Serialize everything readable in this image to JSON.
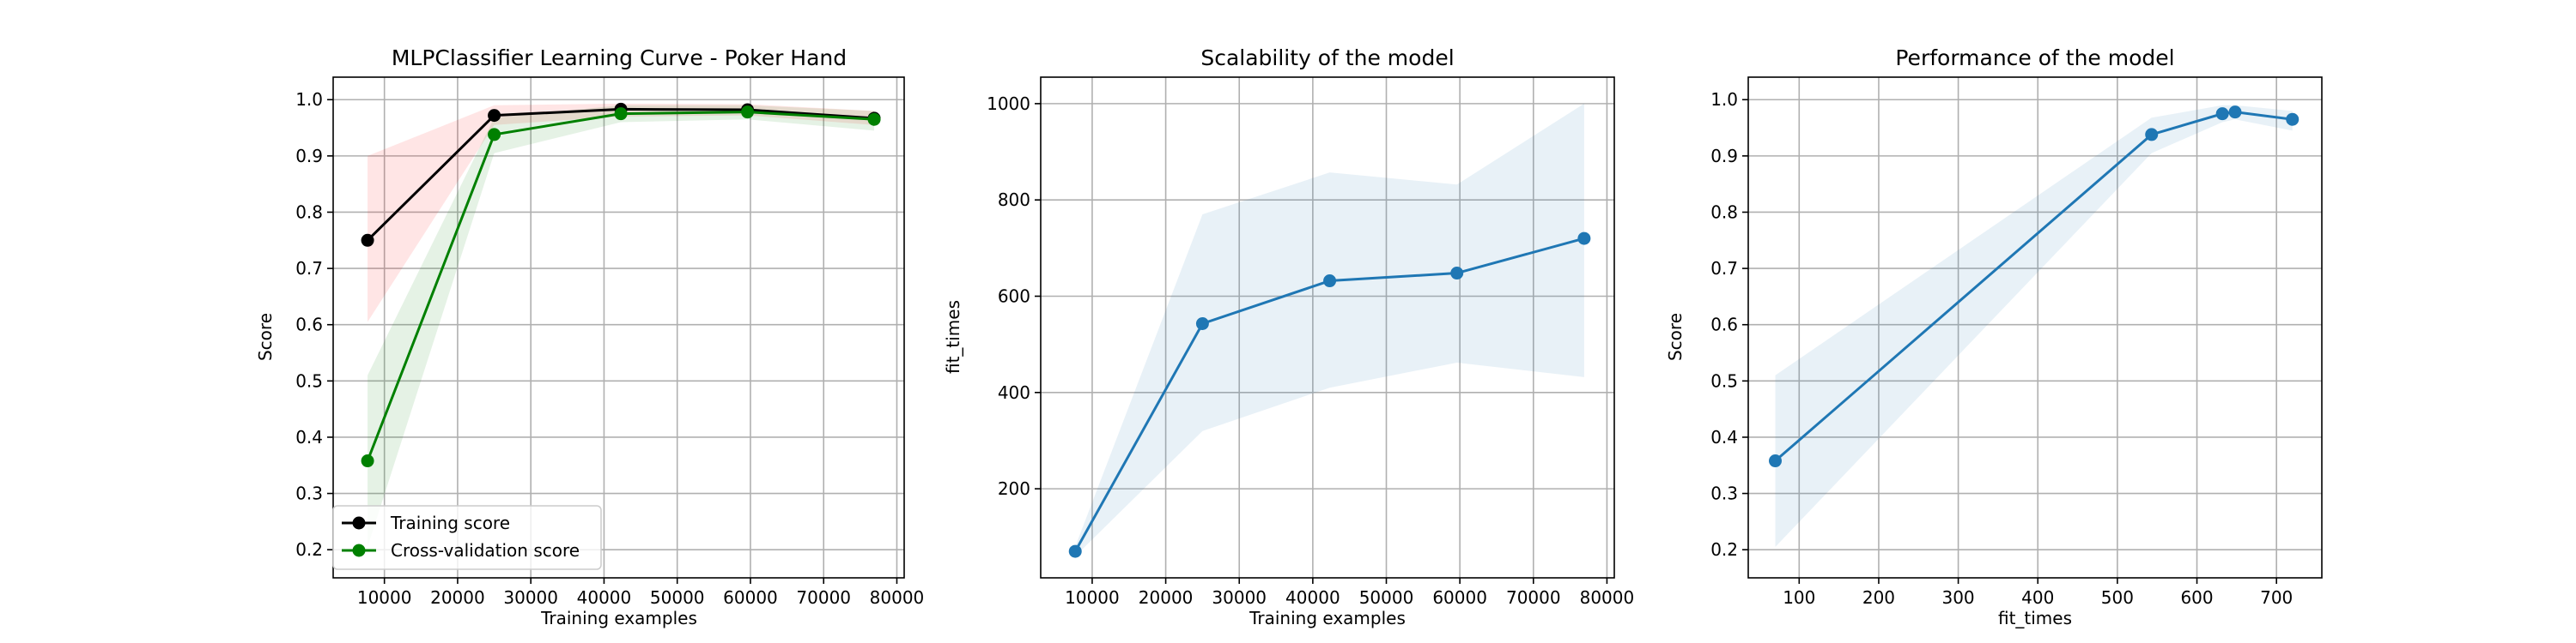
{
  "colors": {
    "train": "#000000",
    "train_band": "#ff0000",
    "cv": "#008000",
    "cv_band": "#008000",
    "blue": "#1f77b4",
    "grid": "#b0b0b0",
    "axes": "#000000"
  },
  "chart_data": [
    {
      "type": "line",
      "title": "MLPClassifier Learning Curve - Poker Hand",
      "xlabel": "Training examples",
      "ylabel": "Score",
      "xlim": [
        3000,
        81000
      ],
      "ylim": [
        0.15,
        1.04
      ],
      "xticks": [
        10000,
        20000,
        30000,
        40000,
        50000,
        60000,
        70000,
        80000
      ],
      "xtick_labels": [
        "10000",
        "20000",
        "30000",
        "40000",
        "50000",
        "60000",
        "70000",
        "80000"
      ],
      "yticks": [
        0.2,
        0.3,
        0.4,
        0.5,
        0.6,
        0.7,
        0.8,
        0.9,
        1.0
      ],
      "ytick_labels": [
        "0.2",
        "0.3",
        "0.4",
        "0.5",
        "0.6",
        "0.7",
        "0.8",
        "0.9",
        "1.0"
      ],
      "grid": true,
      "legend": "lower-left",
      "series": [
        {
          "name": "Training score",
          "color_key": "train",
          "band_color_key": "train_band",
          "x": [
            7700,
            25000,
            42300,
            59600,
            76900
          ],
          "y": [
            0.75,
            0.972,
            0.983,
            0.982,
            0.967
          ],
          "lower": [
            0.605,
            0.955,
            0.97,
            0.972,
            0.955
          ],
          "upper": [
            0.9,
            0.99,
            0.993,
            0.992,
            0.98
          ]
        },
        {
          "name": "Cross-validation score",
          "color_key": "cv",
          "band_color_key": "cv_band",
          "x": [
            7700,
            25000,
            42300,
            59600,
            76900
          ],
          "y": [
            0.358,
            0.938,
            0.975,
            0.978,
            0.965
          ],
          "lower": [
            0.205,
            0.905,
            0.96,
            0.965,
            0.945
          ],
          "upper": [
            0.51,
            0.968,
            0.99,
            0.99,
            0.98
          ]
        }
      ]
    },
    {
      "type": "line",
      "title": "Scalability of the model",
      "xlabel": "Training examples",
      "ylabel": "fit_times",
      "xlim": [
        3000,
        81000
      ],
      "ylim": [
        15,
        1055
      ],
      "xticks": [
        10000,
        20000,
        30000,
        40000,
        50000,
        60000,
        70000,
        80000
      ],
      "xtick_labels": [
        "10000",
        "20000",
        "30000",
        "40000",
        "50000",
        "60000",
        "70000",
        "80000"
      ],
      "yticks": [
        200,
        400,
        600,
        800,
        1000
      ],
      "ytick_labels": [
        "200",
        "400",
        "600",
        "800",
        "1000"
      ],
      "grid": true,
      "series": [
        {
          "color_key": "blue",
          "band_color_key": "blue",
          "x": [
            7700,
            25000,
            42300,
            59600,
            76900
          ],
          "y": [
            70,
            543,
            632,
            648,
            720
          ],
          "lower": [
            60,
            320,
            410,
            462,
            432
          ],
          "upper": [
            80,
            770,
            857,
            832,
            1000
          ]
        }
      ]
    },
    {
      "type": "line",
      "title": "Performance of the model",
      "xlabel": "fit_times",
      "ylabel": "Score",
      "xlim": [
        36,
        757
      ],
      "ylim": [
        0.15,
        1.04
      ],
      "xticks": [
        100,
        200,
        300,
        400,
        500,
        600,
        700
      ],
      "xtick_labels": [
        "100",
        "200",
        "300",
        "400",
        "500",
        "600",
        "700"
      ],
      "yticks": [
        0.2,
        0.3,
        0.4,
        0.5,
        0.6,
        0.7,
        0.8,
        0.9,
        1.0
      ],
      "ytick_labels": [
        "0.2",
        "0.3",
        "0.4",
        "0.5",
        "0.6",
        "0.7",
        "0.8",
        "0.9",
        "1.0"
      ],
      "grid": true,
      "series": [
        {
          "color_key": "blue",
          "band_color_key": "blue",
          "x": [
            70,
            543,
            632,
            648,
            720
          ],
          "y": [
            0.358,
            0.938,
            0.975,
            0.978,
            0.965
          ],
          "lower": [
            0.205,
            0.905,
            0.96,
            0.965,
            0.945
          ],
          "upper": [
            0.51,
            0.968,
            0.99,
            0.99,
            0.98
          ]
        }
      ]
    }
  ]
}
